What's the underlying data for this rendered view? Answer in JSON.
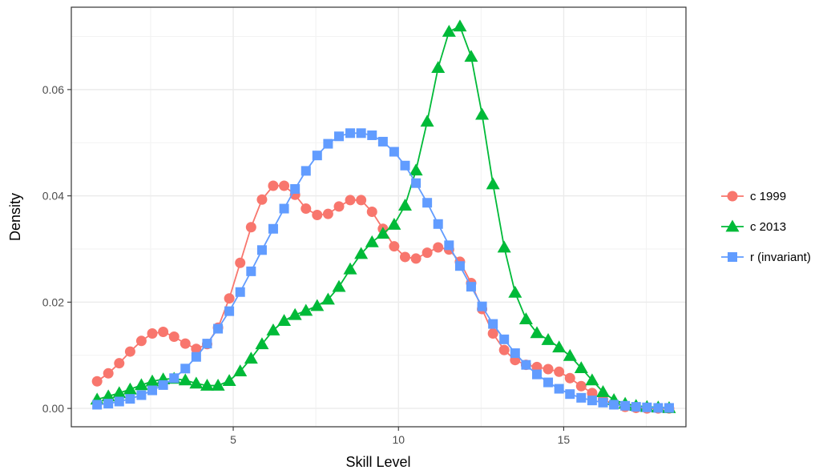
{
  "chart_data": {
    "type": "line",
    "xlabel": "Skill Level",
    "ylabel": "Density",
    "xlim": [
      0.1,
      18.7
    ],
    "ylim": [
      -0.00345,
      0.0755
    ],
    "x_ticks": [
      5,
      10,
      15
    ],
    "x_tick_labels": [
      "5",
      "10",
      "15"
    ],
    "y_ticks": [
      0,
      0.02,
      0.04,
      0.06
    ],
    "y_tick_labels": [
      "0.00",
      "0.02",
      "0.04",
      "0.06"
    ],
    "grid": true,
    "legend_position": "right",
    "x": [
      0.88,
      1.22,
      1.55,
      1.88,
      2.22,
      2.55,
      2.88,
      3.21,
      3.55,
      3.88,
      4.21,
      4.54,
      4.88,
      5.21,
      5.54,
      5.87,
      6.21,
      6.54,
      6.87,
      7.2,
      7.54,
      7.87,
      8.2,
      8.54,
      8.87,
      9.2,
      9.53,
      9.87,
      10.2,
      10.53,
      10.87,
      11.2,
      11.53,
      11.86,
      12.2,
      12.53,
      12.86,
      13.2,
      13.53,
      13.86,
      14.19,
      14.53,
      14.86,
      15.19,
      15.53,
      15.86,
      16.19,
      16.52,
      16.86,
      17.19,
      17.52,
      17.86,
      18.19
    ],
    "series": [
      {
        "name": "c 1999",
        "color": "#F8766D",
        "marker": "circle",
        "values": [
          0.0051,
          0.0066,
          0.0085,
          0.0107,
          0.0127,
          0.0141,
          0.0144,
          0.0135,
          0.0122,
          0.0112,
          0.0121,
          0.0152,
          0.0207,
          0.0274,
          0.0341,
          0.0393,
          0.0419,
          0.0419,
          0.0402,
          0.0376,
          0.0364,
          0.0366,
          0.038,
          0.0392,
          0.0392,
          0.037,
          0.0338,
          0.0305,
          0.0285,
          0.0282,
          0.0293,
          0.0303,
          0.0299,
          0.0276,
          0.0236,
          0.0187,
          0.0141,
          0.011,
          0.0091,
          0.0082,
          0.0078,
          0.0074,
          0.0069,
          0.0057,
          0.0042,
          0.0029,
          0.0017,
          0.0008,
          0.0003,
          0.0001,
          0.0,
          0.0,
          0.0
        ]
      },
      {
        "name": "c 2013",
        "color": "#00BA38",
        "marker": "triangle",
        "values": [
          0.0017,
          0.0023,
          0.0029,
          0.0036,
          0.0044,
          0.0051,
          0.0055,
          0.0056,
          0.0053,
          0.0047,
          0.0043,
          0.0043,
          0.0052,
          0.007,
          0.0094,
          0.0121,
          0.0147,
          0.0165,
          0.0176,
          0.0184,
          0.0193,
          0.0205,
          0.0229,
          0.0262,
          0.0291,
          0.0313,
          0.0329,
          0.0346,
          0.0382,
          0.0448,
          0.054,
          0.0641,
          0.0709,
          0.0719,
          0.0662,
          0.0553,
          0.0422,
          0.0303,
          0.0218,
          0.0168,
          0.0142,
          0.0129,
          0.0115,
          0.0099,
          0.0076,
          0.0053,
          0.0031,
          0.0016,
          0.0009,
          0.0005,
          0.0003,
          0.0002,
          0.0001
        ]
      },
      {
        "name": "r (invariant)",
        "color": "#619CFF",
        "marker": "square",
        "values": [
          0.0007,
          0.0009,
          0.0013,
          0.0018,
          0.0025,
          0.0034,
          0.0044,
          0.0057,
          0.0075,
          0.0097,
          0.0122,
          0.015,
          0.0183,
          0.0219,
          0.0258,
          0.0298,
          0.0338,
          0.0376,
          0.0413,
          0.0447,
          0.0476,
          0.0498,
          0.0512,
          0.0518,
          0.0518,
          0.0514,
          0.0502,
          0.0483,
          0.0457,
          0.0424,
          0.0387,
          0.0347,
          0.0307,
          0.0268,
          0.0229,
          0.0192,
          0.0159,
          0.013,
          0.0104,
          0.0082,
          0.0064,
          0.0049,
          0.0037,
          0.0027,
          0.002,
          0.0015,
          0.0011,
          0.0007,
          0.0005,
          0.0003,
          0.0002,
          0.0001,
          0.0001
        ]
      }
    ]
  }
}
